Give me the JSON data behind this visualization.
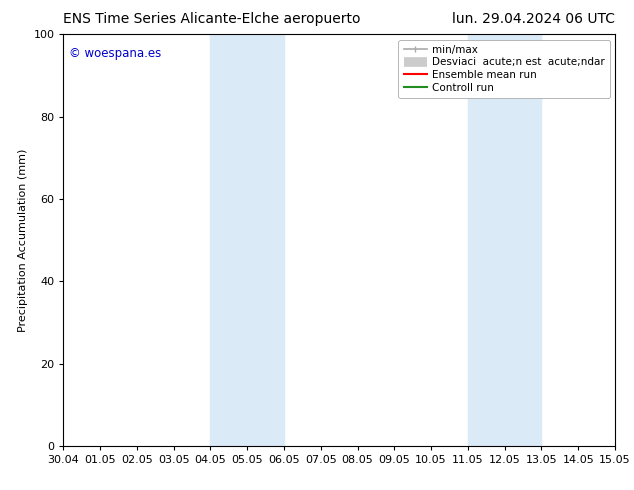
{
  "title_left": "ENS Time Series Alicante-Elche aeropuerto",
  "title_right": "lun. 29.04.2024 06 UTC",
  "ylabel": "Precipitation Accumulation (mm)",
  "xlim_labels": [
    "30.04",
    "01.05",
    "02.05",
    "03.05",
    "04.05",
    "05.05",
    "06.05",
    "07.05",
    "08.05",
    "09.05",
    "10.05",
    "11.05",
    "12.05",
    "13.05",
    "14.05",
    "15.05"
  ],
  "ylim": [
    0,
    100
  ],
  "yticks": [
    0,
    20,
    40,
    60,
    80,
    100
  ],
  "shaded_regions": [
    {
      "xstart": 4,
      "xend": 6,
      "color": "#daeaf7"
    },
    {
      "xstart": 11,
      "xend": 13,
      "color": "#daeaf7"
    }
  ],
  "watermark_text": "© woespana.es",
  "watermark_color": "#0000cc",
  "background_color": "#ffffff",
  "title_fontsize": 10,
  "axis_fontsize": 8,
  "tick_fontsize": 8,
  "legend_fontsize": 7.5,
  "legend_label_minmax": "min/max",
  "legend_label_desv": "Desviaci  acute;n est  acute;ndar",
  "legend_label_ensemble": "Ensemble mean run",
  "legend_label_control": "Controll run",
  "legend_color_minmax": "#aaaaaa",
  "legend_color_desv": "#cccccc",
  "legend_color_ensemble": "#ff0000",
  "legend_color_control": "#228B22"
}
